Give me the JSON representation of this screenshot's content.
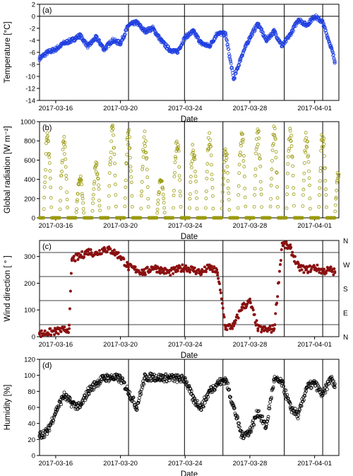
{
  "figure": {
    "date_ticks": [
      "2017-03-16",
      "2017-03-20",
      "2017-03-24",
      "2017-03-28",
      "2017-04-01"
    ],
    "xlabel": "Date",
    "x_range": [
      "2017-03-15",
      "2017-04-02T12:00"
    ],
    "event_lines": [
      "2017-03-20T12:00",
      "2017-03-23T23:00",
      "2017-03-26T08:00",
      "2017-03-30T03:00",
      "2017-04-01T12:00"
    ]
  },
  "chart_data": [
    {
      "type": "scatter",
      "panel": "(a)",
      "ylabel": "Temperature [°C]",
      "ylim": [
        -14,
        2
      ],
      "yticks": [
        2,
        0,
        -2,
        -4,
        -6,
        -8,
        -10,
        -12,
        -14
      ],
      "reference_line": 0,
      "color": "#1f3fe0",
      "marker": "open-circle",
      "x": [
        "2017-03-15",
        "2017-03-15T12:00",
        "2017-03-16",
        "2017-03-16T12:00",
        "2017-03-17",
        "2017-03-17T12:00",
        "2017-03-18",
        "2017-03-18T12:00",
        "2017-03-19",
        "2017-03-19T12:00",
        "2017-03-20",
        "2017-03-20T12:00",
        "2017-03-21",
        "2017-03-21T12:00",
        "2017-03-22",
        "2017-03-22T12:00",
        "2017-03-23",
        "2017-03-23T12:00",
        "2017-03-24",
        "2017-03-24T12:00",
        "2017-03-25",
        "2017-03-25T12:00",
        "2017-03-26",
        "2017-03-26T12:00",
        "2017-03-27",
        "2017-03-27T12:00",
        "2017-03-28",
        "2017-03-28T12:00",
        "2017-03-29",
        "2017-03-29T12:00",
        "2017-03-30",
        "2017-03-30T12:00",
        "2017-03-31",
        "2017-03-31T12:00",
        "2017-04-01",
        "2017-04-01T12:00",
        "2017-04-02",
        "2017-04-02T06:00"
      ],
      "y": [
        -7.0,
        -6.0,
        -5.5,
        -4.5,
        -4.0,
        -3.2,
        -5.0,
        -3.5,
        -5.5,
        -4.0,
        -4.5,
        -1.5,
        -1.0,
        -2.5,
        -2.0,
        -4.0,
        -5.5,
        -6.0,
        -3.5,
        -2.5,
        -4.5,
        -5.0,
        -2.8,
        -3.0,
        -10.5,
        -6.5,
        -3.5,
        -1.2,
        -4.0,
        -2.5,
        -5.0,
        -3.0,
        -0.5,
        -1.5,
        0.0,
        -1.0,
        -5.0,
        -7.5
      ]
    },
    {
      "type": "scatter",
      "panel": "(b)",
      "ylabel": "Global radiation [W m⁻²]",
      "ylim": [
        0,
        1000
      ],
      "yticks": [
        1000,
        800,
        600,
        400,
        200,
        0
      ],
      "color": "#9a9a10",
      "marker": "open-circle",
      "daily_peaks": [
        {
          "date": "2017-03-15",
          "peak": 820
        },
        {
          "date": "2017-03-16",
          "peak": 800
        },
        {
          "date": "2017-03-17",
          "peak": 410
        },
        {
          "date": "2017-03-18",
          "peak": 550
        },
        {
          "date": "2017-03-19",
          "peak": 900
        },
        {
          "date": "2017-03-20",
          "peak": 880
        },
        {
          "date": "2017-03-21",
          "peak": 820
        },
        {
          "date": "2017-03-22",
          "peak": 390
        },
        {
          "date": "2017-03-23",
          "peak": 830
        },
        {
          "date": "2017-03-24",
          "peak": 720
        },
        {
          "date": "2017-03-25",
          "peak": 840
        },
        {
          "date": "2017-03-26",
          "peak": 700
        },
        {
          "date": "2017-03-27",
          "peak": 860
        },
        {
          "date": "2017-03-28",
          "peak": 880
        },
        {
          "date": "2017-03-29",
          "peak": 890
        },
        {
          "date": "2017-03-30",
          "peak": 880
        },
        {
          "date": "2017-03-31",
          "peak": 860
        },
        {
          "date": "2017-04-01",
          "peak": 850
        },
        {
          "date": "2017-04-02",
          "peak": 500
        }
      ]
    },
    {
      "type": "scatter",
      "panel": "(c)",
      "ylabel": "Wind direction [ ° ]",
      "ylim": [
        0,
        360
      ],
      "yticks": [
        300,
        200,
        100,
        0
      ],
      "compass_lines": [
        45,
        135,
        225,
        315
      ],
      "compass_labels": [
        {
          "text": "N",
          "deg": 360
        },
        {
          "text": "W",
          "deg": 270
        },
        {
          "text": "S",
          "deg": 180
        },
        {
          "text": "E",
          "deg": 90
        },
        {
          "text": "N",
          "deg": 0
        }
      ],
      "color": "#8b1010",
      "marker": "filled-circle",
      "x": [
        "2017-03-15",
        "2017-03-15T12:00",
        "2017-03-16",
        "2017-03-16T12:00",
        "2017-03-16T20:00",
        "2017-03-17",
        "2017-03-17T12:00",
        "2017-03-18",
        "2017-03-18T12:00",
        "2017-03-19",
        "2017-03-19T12:00",
        "2017-03-20",
        "2017-03-20T12:00",
        "2017-03-21",
        "2017-03-21T12:00",
        "2017-03-22",
        "2017-03-22T12:00",
        "2017-03-23",
        "2017-03-23T12:00",
        "2017-03-24",
        "2017-03-24T12:00",
        "2017-03-25",
        "2017-03-25T12:00",
        "2017-03-26",
        "2017-03-26T12:00",
        "2017-03-27",
        "2017-03-27T12:00",
        "2017-03-28",
        "2017-03-28T12:00",
        "2017-03-29",
        "2017-03-29T12:00",
        "2017-03-30",
        "2017-03-30T12:00",
        "2017-03-31",
        "2017-03-31T12:00",
        "2017-04-01",
        "2017-04-01T12:00",
        "2017-04-02",
        "2017-04-02T06:00"
      ],
      "y": [
        10,
        15,
        20,
        25,
        30,
        290,
        300,
        320,
        310,
        330,
        320,
        300,
        260,
        250,
        240,
        260,
        250,
        240,
        250,
        260,
        250,
        240,
        260,
        240,
        35,
        40,
        110,
        130,
        30,
        25,
        30,
        350,
        330,
        260,
        250,
        260,
        245,
        250,
        240
      ]
    },
    {
      "type": "scatter",
      "panel": "(d)",
      "ylabel": "Humidity [%]",
      "ylim": [
        0,
        120
      ],
      "yticks": [
        120,
        100,
        80,
        60,
        40,
        20,
        0
      ],
      "color": "#000000",
      "marker": "open-circle",
      "x": [
        "2017-03-15",
        "2017-03-15T12:00",
        "2017-03-16",
        "2017-03-16T12:00",
        "2017-03-17",
        "2017-03-17T12:00",
        "2017-03-18",
        "2017-03-18T12:00",
        "2017-03-19",
        "2017-03-19T12:00",
        "2017-03-20",
        "2017-03-20T12:00",
        "2017-03-21",
        "2017-03-21T12:00",
        "2017-03-22",
        "2017-03-22T12:00",
        "2017-03-23",
        "2017-03-23T12:00",
        "2017-03-24",
        "2017-03-24T12:00",
        "2017-03-25",
        "2017-03-25T12:00",
        "2017-03-26",
        "2017-03-26T12:00",
        "2017-03-27",
        "2017-03-27T12:00",
        "2017-03-28",
        "2017-03-28T12:00",
        "2017-03-29",
        "2017-03-29T12:00",
        "2017-03-30",
        "2017-03-30T12:00",
        "2017-03-31",
        "2017-03-31T12:00",
        "2017-04-01",
        "2017-04-01T12:00",
        "2017-04-02",
        "2017-04-02T06:00"
      ],
      "y": [
        25,
        30,
        55,
        75,
        65,
        60,
        80,
        90,
        97,
        97,
        96,
        80,
        60,
        97,
        98,
        97,
        97,
        96,
        95,
        70,
        60,
        80,
        90,
        95,
        60,
        25,
        30,
        55,
        35,
        95,
        90,
        60,
        50,
        85,
        90,
        75,
        97,
        85
      ]
    }
  ]
}
